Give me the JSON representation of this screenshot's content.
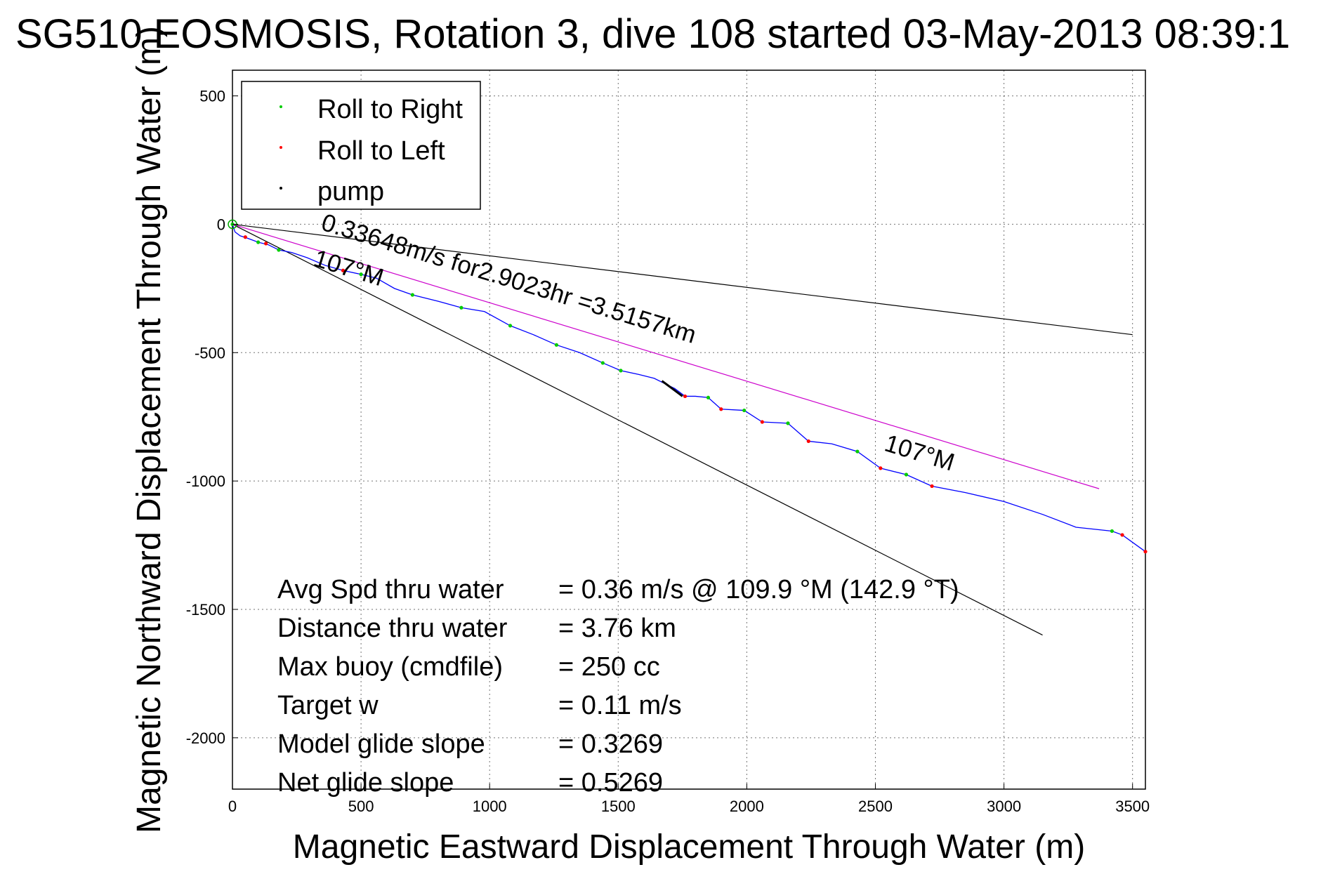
{
  "chart_data": {
    "type": "line",
    "title": "SG510 EOSMOSIS, Rotation 3, dive 108 started 03-May-2013 08:39:1",
    "xlabel": "Magnetic Eastward Displacement Through Water (m)",
    "ylabel": "Magnetic Northward Displacement Through Water (m)",
    "xlim": [
      0,
      3550
    ],
    "ylim": [
      -2200,
      600
    ],
    "xticks": [
      0,
      500,
      1000,
      1500,
      2000,
      2500,
      3000,
      3500
    ],
    "yticks": [
      500,
      0,
      -500,
      -1000,
      -1500,
      -2000
    ],
    "grid": true,
    "legend": {
      "position": "top-left",
      "entries": [
        {
          "label": "Roll to Right",
          "color": "#00cc00"
        },
        {
          "label": "Roll to Left",
          "color": "#ff0000"
        },
        {
          "label": "pump",
          "color": "#000000"
        }
      ]
    },
    "track": {
      "color": "#0000ff",
      "x": [
        0,
        10,
        30,
        60,
        100,
        140,
        180,
        230,
        290,
        360,
        430,
        500,
        560,
        630,
        700,
        800,
        890,
        980,
        1080,
        1170,
        1260,
        1350,
        1440,
        1510,
        1580,
        1640,
        1680,
        1720,
        1760,
        1800,
        1850,
        1900,
        1990,
        2060,
        2160,
        2240,
        2330,
        2430,
        2520,
        2620,
        2720,
        2850,
        3000,
        3150,
        3280,
        3420,
        3460,
        3550
      ],
      "y": [
        0,
        -30,
        -45,
        -55,
        -70,
        -80,
        -100,
        -110,
        -130,
        -160,
        -180,
        -195,
        -210,
        -250,
        -275,
        -300,
        -325,
        -340,
        -395,
        -430,
        -470,
        -500,
        -540,
        -570,
        -585,
        -600,
        -620,
        -640,
        -670,
        -670,
        -675,
        -720,
        -725,
        -770,
        -775,
        -845,
        -855,
        -885,
        -950,
        -975,
        -1020,
        -1045,
        -1080,
        -1130,
        -1180,
        -1195,
        -1210,
        -1275
      ]
    },
    "roll_right_points": {
      "color": "#00cc00",
      "x": [
        0,
        100,
        180,
        500,
        700,
        890,
        1080,
        1260,
        1440,
        1510,
        1850,
        1990,
        2160,
        2430,
        2620,
        3420
      ],
      "y": [
        0,
        -70,
        -100,
        -195,
        -275,
        -325,
        -395,
        -470,
        -540,
        -570,
        -675,
        -725,
        -775,
        -885,
        -975,
        -1195
      ]
    },
    "roll_left_points": {
      "color": "#ff0000",
      "x": [
        50,
        130,
        430,
        1760,
        1900,
        2060,
        2240,
        2520,
        2720,
        3460,
        3550
      ],
      "y": [
        -50,
        -75,
        -180,
        -670,
        -720,
        -770,
        -845,
        -950,
        -1020,
        -1210,
        -1275
      ]
    },
    "pump_points": {
      "color": "#000000",
      "x": [
        1670,
        1690,
        1710,
        1730,
        1750
      ],
      "y": [
        -610,
        -625,
        -640,
        -655,
        -670
      ]
    },
    "reference_lines": [
      {
        "name": "upper-bound-line",
        "color": "#000000",
        "x": [
          0,
          3500
        ],
        "y": [
          0,
          -430
        ]
      },
      {
        "name": "lower-bound-line",
        "color": "#000000",
        "x": [
          0,
          3150
        ],
        "y": [
          0,
          -1600
        ]
      },
      {
        "name": "average-heading-line",
        "color": "#cc00cc",
        "x": [
          0,
          3370
        ],
        "y": [
          0,
          -1030
        ]
      }
    ],
    "annotations": [
      {
        "text": "0.33648m/s for2.9023hr =3.5157km",
        "x": 340,
        "y": -20,
        "angle": 17
      },
      {
        "text": "107°M",
        "x": 310,
        "y": -160,
        "angle": 17
      },
      {
        "text": "107°M",
        "x": 2530,
        "y": -880,
        "angle": 17
      }
    ],
    "stats": [
      {
        "label": "Avg Spd thru water",
        "value": "=  0.36 m/s @ 109.9 °M (142.9 °T)"
      },
      {
        "label": "Distance thru water",
        "value": "=  3.76 km"
      },
      {
        "label": "Max buoy (cmdfile)",
        "value": "= 250 cc"
      },
      {
        "label": "Target w",
        "value": "= 0.11 m/s"
      },
      {
        "label": "Model glide slope",
        "value": "= 0.3269"
      },
      {
        "label": "Net glide slope",
        "value": "= 0.5269"
      }
    ]
  }
}
